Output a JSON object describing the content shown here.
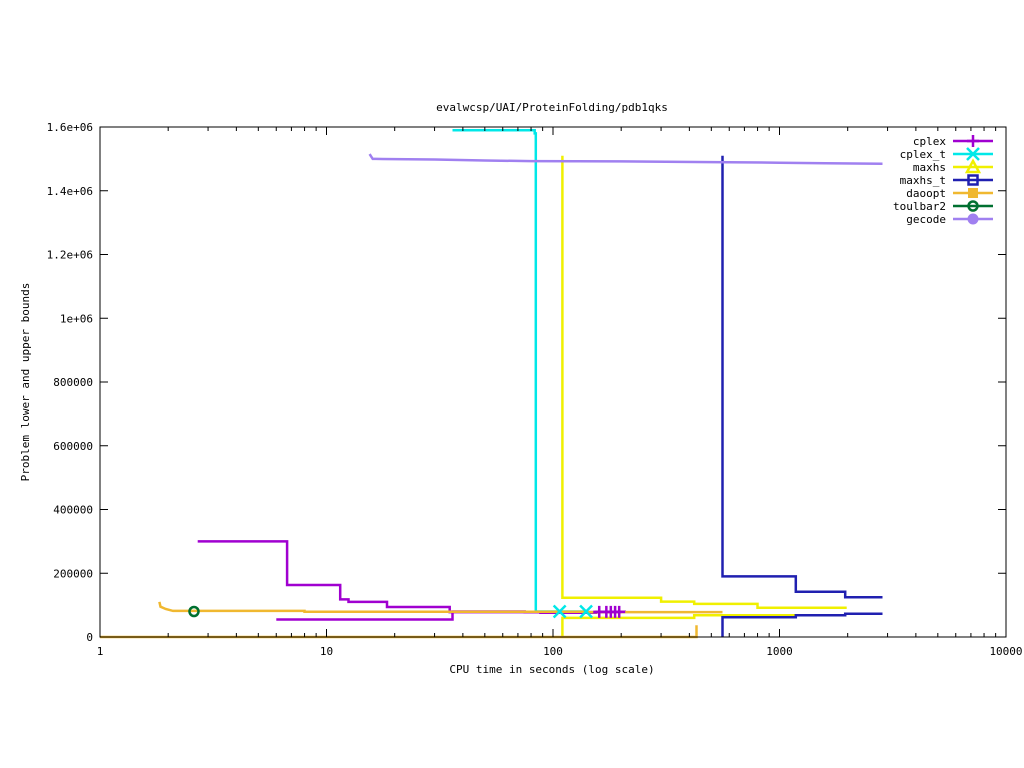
{
  "chart_data": {
    "type": "line",
    "title": "evalwcsp/UAI/ProteinFolding/pdb1qks",
    "xlabel": "CPU time in seconds (log scale)",
    "ylabel": "Problem lower and upper bounds",
    "xscale": "log",
    "xlim": [
      1,
      10000
    ],
    "ylim": [
      0,
      1600000
    ],
    "grid": false,
    "legend_position": "top-right",
    "x_ticks": [
      {
        "value": 1,
        "label": "1"
      },
      {
        "value": 10,
        "label": "10"
      },
      {
        "value": 100,
        "label": "100"
      },
      {
        "value": 1000,
        "label": "1000"
      },
      {
        "value": 10000,
        "label": "10000"
      }
    ],
    "y_ticks": [
      {
        "value": 0,
        "label": "0"
      },
      {
        "value": 200000,
        "label": "200000"
      },
      {
        "value": 400000,
        "label": "400000"
      },
      {
        "value": 600000,
        "label": "600000"
      },
      {
        "value": 800000,
        "label": "800000"
      },
      {
        "value": 1000000,
        "label": "1e+06"
      },
      {
        "value": 1200000,
        "label": "1.2e+06"
      },
      {
        "value": 1400000,
        "label": "1.4e+06"
      },
      {
        "value": 1600000,
        "label": "1.6e+06"
      }
    ],
    "series": [
      {
        "name": "cplex",
        "color": "#a000d0",
        "marker": "plus",
        "upper": [
          [
            2.7,
            300000
          ],
          [
            6.7,
            300000
          ],
          [
            6.7,
            163000
          ],
          [
            11.5,
            163000
          ],
          [
            11.5,
            118000
          ],
          [
            12.5,
            118000
          ],
          [
            12.5,
            110000
          ],
          [
            18.5,
            110000
          ],
          [
            18.5,
            94000
          ],
          [
            35,
            94000
          ],
          [
            35,
            78000
          ],
          [
            88,
            78000
          ],
          [
            88,
            76000
          ],
          [
            155,
            76000
          ],
          [
            155,
            79000
          ],
          [
            210,
            79000
          ]
        ],
        "lower": [
          [
            6,
            55000
          ],
          [
            36,
            55000
          ],
          [
            36,
            80000
          ],
          [
            75,
            80000
          ],
          [
            75,
            78000
          ],
          [
            200,
            78000
          ]
        ],
        "markers": [
          [
            160,
            79000
          ],
          [
            172,
            79000
          ],
          [
            180,
            79000
          ],
          [
            188,
            79000
          ],
          [
            196,
            79000
          ]
        ]
      },
      {
        "name": "cplex_t",
        "color": "#00e8e8",
        "marker": "x",
        "upper": [
          [
            36,
            1590000
          ],
          [
            83,
            1590000
          ],
          [
            83,
            1580000
          ],
          [
            84,
            1580000
          ],
          [
            84,
            80000
          ],
          [
            140,
            80000
          ]
        ],
        "lower": [],
        "markers": [
          [
            107,
            80000
          ],
          [
            140,
            80000
          ]
        ]
      },
      {
        "name": "maxhs",
        "color": "#f0f000",
        "marker": "triangle",
        "upper": [
          [
            110,
            1510000
          ],
          [
            110,
            123000
          ],
          [
            300,
            123000
          ],
          [
            300,
            111000
          ],
          [
            420,
            111000
          ],
          [
            420,
            104000
          ],
          [
            800,
            104000
          ],
          [
            800,
            92000
          ],
          [
            1980,
            92000
          ]
        ],
        "lower": [
          [
            110,
            0
          ],
          [
            110,
            60000
          ],
          [
            420,
            60000
          ],
          [
            420,
            68000
          ],
          [
            1180,
            68000
          ]
        ],
        "markers": []
      },
      {
        "name": "maxhs_t",
        "color": "#2020b0",
        "marker": "square",
        "upper": [
          [
            560,
            1510000
          ],
          [
            560,
            190000
          ],
          [
            1180,
            190000
          ],
          [
            1180,
            142000
          ],
          [
            1950,
            142000
          ],
          [
            1950,
            125000
          ],
          [
            2850,
            125000
          ]
        ],
        "lower": [
          [
            560,
            0
          ],
          [
            560,
            62000
          ],
          [
            1180,
            62000
          ],
          [
            1180,
            68000
          ],
          [
            1950,
            68000
          ],
          [
            1950,
            73000
          ],
          [
            2850,
            73000
          ]
        ],
        "markers": []
      },
      {
        "name": "daoopt",
        "color": "#f0b830",
        "marker": "filled-square",
        "upper": [
          [
            1.83,
            110000
          ],
          [
            1.85,
            95000
          ],
          [
            1.95,
            88000
          ],
          [
            2.1,
            82000
          ],
          [
            8,
            82000
          ],
          [
            8,
            79000
          ],
          [
            140,
            79000
          ],
          [
            140,
            78000
          ],
          [
            560,
            78000
          ]
        ],
        "lower": [
          [
            1,
            0
          ],
          [
            430,
            0
          ],
          [
            430,
            37000
          ]
        ],
        "markers": []
      },
      {
        "name": "toulbar2",
        "color": "#007030",
        "marker": "circle",
        "upper": [],
        "lower": [],
        "markers": [
          [
            2.6,
            80000
          ]
        ]
      },
      {
        "name": "gecode",
        "color": "#a080f0",
        "marker": "filled-circle",
        "upper": [
          [
            15.5,
            1515000
          ],
          [
            16,
            1500000
          ],
          [
            16.5,
            1500000
          ],
          [
            30,
            1498000
          ],
          [
            50,
            1495000
          ],
          [
            80,
            1493000
          ],
          [
            200,
            1492000
          ],
          [
            500,
            1490000
          ],
          [
            1000,
            1488000
          ],
          [
            1600,
            1486000
          ],
          [
            2850,
            1485000
          ]
        ],
        "lower": [],
        "markers": []
      }
    ]
  }
}
